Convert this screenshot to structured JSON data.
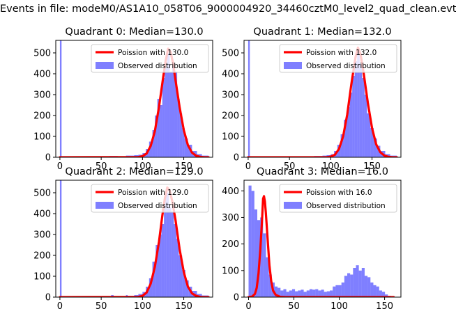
{
  "figure": {
    "suptitle": "Events in file: modeM0/AS1A10_058T06_9000004920_34460cztM0_level2_quad_clean.evt"
  },
  "chart_data": [
    {
      "type": "histogram",
      "title": "Quadrant 0: Median=130.0",
      "median": 130.0,
      "xlim": [
        -5,
        185
      ],
      "ylim": [
        0,
        560
      ],
      "xticks": [
        0,
        50,
        100,
        150
      ],
      "yticks": [
        0,
        100,
        200,
        300,
        400,
        500
      ],
      "legend_position": "top-right",
      "series": [
        {
          "name": "Poission with 130.0",
          "kind": "line",
          "color": "#ff0000",
          "x": [
            0,
            95,
            100,
            105,
            110,
            115,
            120,
            125,
            128,
            131,
            134,
            137,
            140,
            145,
            150,
            155,
            160,
            165,
            170,
            175,
            180
          ],
          "y": [
            0,
            1,
            5,
            18,
            55,
            125,
            240,
            380,
            460,
            520,
            505,
            450,
            370,
            240,
            130,
            58,
            22,
            7,
            2,
            0,
            0
          ]
        },
        {
          "name": "Observed distribution",
          "kind": "histogram",
          "color": "#0000ff",
          "bins": [
            [
              0,
              2,
              560
            ],
            [
              4,
              10,
              5
            ],
            [
              10,
              20,
              4
            ],
            [
              20,
              30,
              5
            ],
            [
              30,
              40,
              4
            ],
            [
              40,
              50,
              5
            ],
            [
              50,
              60,
              5
            ],
            [
              60,
              70,
              6
            ],
            [
              70,
              80,
              5
            ],
            [
              80,
              90,
              8
            ],
            [
              90,
              95,
              10
            ],
            [
              95,
              100,
              12
            ],
            [
              100,
              104,
              20
            ],
            [
              104,
              108,
              40
            ],
            [
              108,
              112,
              75
            ],
            [
              112,
              115,
              130
            ],
            [
              115,
              118,
              200
            ],
            [
              118,
              121,
              280
            ],
            [
              121,
              124,
              250
            ],
            [
              124,
              127,
              380
            ],
            [
              127,
              130,
              430
            ],
            [
              130,
              133,
              500
            ],
            [
              133,
              136,
              410
            ],
            [
              136,
              139,
              440
            ],
            [
              139,
              142,
              410
            ],
            [
              142,
              145,
              280
            ],
            [
              145,
              148,
              210
            ],
            [
              148,
              151,
              140
            ],
            [
              151,
              155,
              90
            ],
            [
              155,
              160,
              60
            ],
            [
              160,
              166,
              30
            ],
            [
              166,
              172,
              15
            ],
            [
              172,
              180,
              8
            ]
          ]
        }
      ]
    },
    {
      "type": "histogram",
      "title": "Quadrant 1: Median=132.0",
      "median": 132.0,
      "xlim": [
        -5,
        185
      ],
      "ylim": [
        0,
        560
      ],
      "xticks": [
        0,
        50,
        100,
        150
      ],
      "yticks": [
        0,
        100,
        200,
        300,
        400,
        500
      ],
      "legend_position": "top-right",
      "series": [
        {
          "name": "Poission with 132.0",
          "kind": "line",
          "color": "#ff0000",
          "x": [
            0,
            95,
            100,
            105,
            110,
            115,
            120,
            125,
            130,
            133,
            136,
            140,
            145,
            150,
            155,
            160,
            165,
            170,
            175,
            180
          ],
          "y": [
            0,
            0,
            3,
            12,
            40,
            100,
            205,
            350,
            480,
            525,
            495,
            400,
            260,
            140,
            62,
            24,
            8,
            2,
            0,
            0
          ]
        },
        {
          "name": "Observed distribution",
          "kind": "histogram",
          "color": "#0000ff",
          "bins": [
            [
              0,
              2,
              560
            ],
            [
              4,
              10,
              4
            ],
            [
              10,
              20,
              4
            ],
            [
              20,
              30,
              5
            ],
            [
              30,
              40,
              4
            ],
            [
              40,
              50,
              5
            ],
            [
              50,
              60,
              5
            ],
            [
              60,
              70,
              5
            ],
            [
              70,
              80,
              5
            ],
            [
              80,
              90,
              6
            ],
            [
              90,
              95,
              8
            ],
            [
              95,
              100,
              10
            ],
            [
              100,
              104,
              15
            ],
            [
              104,
              108,
              30
            ],
            [
              108,
              112,
              60
            ],
            [
              112,
              116,
              110
            ],
            [
              116,
              120,
              180
            ],
            [
              120,
              123,
              240
            ],
            [
              123,
              126,
              310
            ],
            [
              126,
              129,
              390
            ],
            [
              129,
              132,
              460
            ],
            [
              132,
              135,
              520
            ],
            [
              135,
              138,
              450
            ],
            [
              138,
              141,
              380
            ],
            [
              141,
              144,
              300
            ],
            [
              144,
              148,
              210
            ],
            [
              148,
              152,
              140
            ],
            [
              152,
              156,
              90
            ],
            [
              156,
              160,
              55
            ],
            [
              160,
              166,
              30
            ],
            [
              166,
              172,
              15
            ],
            [
              172,
              180,
              8
            ]
          ]
        }
      ]
    },
    {
      "type": "histogram",
      "title": "Quadrant 2: Median=129.0",
      "median": 129.0,
      "xlim": [
        -5,
        185
      ],
      "ylim": [
        0,
        560
      ],
      "xticks": [
        0,
        50,
        100,
        150
      ],
      "yticks": [
        0,
        100,
        200,
        300,
        400,
        500
      ],
      "legend_position": "top-right",
      "series": [
        {
          "name": "Poission with 129.0",
          "kind": "line",
          "color": "#ff0000",
          "x": [
            0,
            95,
            100,
            105,
            110,
            115,
            120,
            124,
            127,
            130,
            133,
            136,
            140,
            145,
            150,
            155,
            160,
            165,
            170,
            175,
            180
          ],
          "y": [
            0,
            1,
            6,
            22,
            65,
            145,
            265,
            390,
            470,
            525,
            510,
            460,
            370,
            230,
            120,
            50,
            18,
            6,
            1,
            0,
            0
          ]
        },
        {
          "name": "Observed distribution",
          "kind": "histogram",
          "color": "#0000ff",
          "bins": [
            [
              0,
              2,
              560
            ],
            [
              4,
              10,
              4
            ],
            [
              10,
              20,
              4
            ],
            [
              20,
              30,
              5
            ],
            [
              30,
              40,
              4
            ],
            [
              40,
              50,
              5
            ],
            [
              50,
              60,
              4
            ],
            [
              60,
              62,
              4
            ],
            [
              62,
              65,
              10
            ],
            [
              65,
              70,
              5
            ],
            [
              70,
              80,
              4
            ],
            [
              80,
              82,
              10
            ],
            [
              82,
              90,
              6
            ],
            [
              90,
              95,
              10
            ],
            [
              95,
              100,
              15
            ],
            [
              100,
              104,
              25
            ],
            [
              104,
              108,
              50
            ],
            [
              108,
              112,
              90
            ],
            [
              112,
              116,
              170
            ],
            [
              116,
              120,
              250
            ],
            [
              120,
              123,
              300
            ],
            [
              123,
              126,
              350
            ],
            [
              126,
              129,
              480
            ],
            [
              129,
              132,
              500
            ],
            [
              132,
              135,
              430
            ],
            [
              135,
              138,
              410
            ],
            [
              138,
              141,
              350
            ],
            [
              141,
              144,
              280
            ],
            [
              144,
              148,
              200
            ],
            [
              148,
              152,
              130
            ],
            [
              152,
              156,
              80
            ],
            [
              156,
              160,
              50
            ],
            [
              160,
              166,
              30
            ],
            [
              166,
              172,
              15
            ],
            [
              172,
              180,
              8
            ]
          ]
        }
      ]
    },
    {
      "type": "histogram",
      "title": "Quadrant 3: Median=16.0",
      "median": 16.0,
      "xlim": [
        -5,
        168
      ],
      "ylim": [
        0,
        440
      ],
      "xticks": [
        0,
        50,
        100,
        150
      ],
      "yticks": [
        0,
        100,
        200,
        300,
        400
      ],
      "legend_position": "top-right",
      "series": [
        {
          "name": "Poission with 16.0",
          "kind": "line",
          "color": "#ff0000",
          "x": [
            0,
            4,
            7,
            9,
            11,
            13,
            15,
            16,
            17,
            18,
            19,
            21,
            23,
            25,
            27,
            30,
            35,
            40,
            50,
            100,
            160
          ],
          "y": [
            0,
            2,
            12,
            35,
            90,
            180,
            300,
            370,
            380,
            360,
            320,
            220,
            120,
            60,
            25,
            8,
            1,
            0,
            0,
            0,
            0
          ]
        },
        {
          "name": "Observed distribution",
          "kind": "histogram",
          "color": "#0000ff",
          "bins": [
            [
              0,
              3.2,
              420
            ],
            [
              3.2,
              6.4,
              400
            ],
            [
              6.4,
              9.6,
              330
            ],
            [
              9.6,
              12.8,
              290
            ],
            [
              12.8,
              16,
              300
            ],
            [
              16,
              19.2,
              240
            ],
            [
              19.2,
              22.4,
              150
            ],
            [
              22.4,
              25.6,
              85
            ],
            [
              25.6,
              28.8,
              55
            ],
            [
              28.8,
              32,
              40
            ],
            [
              32,
              35.2,
              35
            ],
            [
              35.2,
              38.4,
              25
            ],
            [
              38.4,
              41.6,
              30
            ],
            [
              41.6,
              44.8,
              20
            ],
            [
              44.8,
              48,
              25
            ],
            [
              48,
              51.2,
              30
            ],
            [
              51.2,
              54.4,
              22
            ],
            [
              54.4,
              57.6,
              25
            ],
            [
              57.6,
              60.8,
              28
            ],
            [
              60.8,
              64,
              20
            ],
            [
              64,
              67.2,
              25
            ],
            [
              67.2,
              70.4,
              30
            ],
            [
              70.4,
              73.6,
              28
            ],
            [
              73.6,
              76.8,
              30
            ],
            [
              76.8,
              80,
              25
            ],
            [
              80,
              83.2,
              28
            ],
            [
              83.2,
              86.4,
              20
            ],
            [
              86.4,
              89.6,
              22
            ],
            [
              89.6,
              92.8,
              25
            ],
            [
              92.8,
              96,
              40
            ],
            [
              96,
              99.2,
              45
            ],
            [
              99.2,
              102.4,
              45
            ],
            [
              102.4,
              105.6,
              55
            ],
            [
              105.6,
              108.8,
              80
            ],
            [
              108.8,
              112,
              90
            ],
            [
              112,
              115.2,
              85
            ],
            [
              115.2,
              118.4,
              110
            ],
            [
              118.4,
              121.6,
              120
            ],
            [
              121.6,
              124.8,
              100
            ],
            [
              124.8,
              128,
              110
            ],
            [
              128,
              131.2,
              80
            ],
            [
              131.2,
              134.4,
              75
            ],
            [
              134.4,
              137.6,
              55
            ],
            [
              137.6,
              140.8,
              45
            ],
            [
              140.8,
              144,
              40
            ],
            [
              144,
              147.2,
              25
            ],
            [
              147.2,
              150.4,
              20
            ],
            [
              150.4,
              153.6,
              10
            ],
            [
              153.6,
              156.8,
              5
            ],
            [
              156.8,
              160,
              2
            ]
          ]
        }
      ]
    }
  ]
}
